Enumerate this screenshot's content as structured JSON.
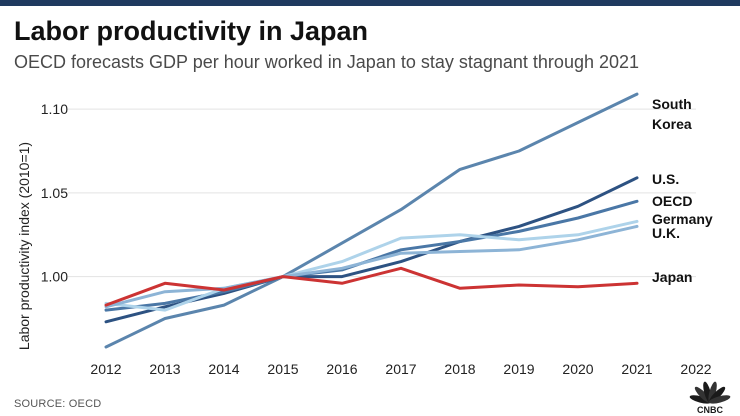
{
  "header": {
    "title": "Labor productivity in Japan",
    "subtitle": "OECD forecasts GDP per hour worked in Japan to stay stagnant through 2021"
  },
  "footer": {
    "source": "SOURCE: OECD",
    "brand": "CNBC"
  },
  "chart_data": {
    "type": "line",
    "title": "Labor productivity in Japan",
    "xlabel": "",
    "ylabel": "Labor productivity index (2010=1)",
    "x": [
      2012,
      2013,
      2014,
      2015,
      2016,
      2017,
      2018,
      2019,
      2020,
      2021
    ],
    "x_ticks": [
      "2012",
      "2013",
      "2014",
      "2015",
      "2016",
      "2017",
      "2018",
      "2019",
      "2020",
      "2021",
      "2022"
    ],
    "xlim": [
      2012,
      2022
    ],
    "y_ticks": [
      "1.10",
      "1.05",
      "1.00"
    ],
    "y_tick_values": [
      1.1,
      1.05,
      1.0
    ],
    "ylim": [
      0.955,
      1.115
    ],
    "grid": true,
    "legend": "direct labels at line ends",
    "series": [
      {
        "name": "South Korea",
        "label_lines": [
          "South",
          "Korea"
        ],
        "color": "#5b85ad",
        "values": [
          0.958,
          0.975,
          0.983,
          1.0,
          1.02,
          1.04,
          1.064,
          1.075,
          1.092,
          1.109
        ]
      },
      {
        "name": "U.S.",
        "label_lines": [
          "U.S."
        ],
        "color": "#2d5282",
        "values": [
          0.973,
          0.982,
          0.99,
          1.0,
          1.0,
          1.009,
          1.021,
          1.03,
          1.042,
          1.059
        ]
      },
      {
        "name": "OECD",
        "label_lines": [
          "OECD"
        ],
        "color": "#4a77a6",
        "values": [
          0.98,
          0.984,
          0.991,
          1.0,
          1.004,
          1.016,
          1.021,
          1.027,
          1.035,
          1.045
        ]
      },
      {
        "name": "Germany",
        "label_lines": [
          "Germany"
        ],
        "color": "#aed3ea",
        "values": [
          0.984,
          0.98,
          0.993,
          1.0,
          1.009,
          1.023,
          1.025,
          1.022,
          1.025,
          1.033
        ]
      },
      {
        "name": "U.K.",
        "label_lines": [
          "U.K."
        ],
        "color": "#8db4d6",
        "values": [
          0.982,
          0.991,
          0.993,
          1.0,
          1.005,
          1.014,
          1.015,
          1.016,
          1.022,
          1.03
        ]
      },
      {
        "name": "Japan",
        "label_lines": [
          "Japan"
        ],
        "color": "#cc3333",
        "values": [
          0.983,
          0.996,
          0.992,
          1.0,
          0.996,
          1.005,
          0.993,
          0.995,
          0.994,
          0.996
        ]
      }
    ]
  }
}
